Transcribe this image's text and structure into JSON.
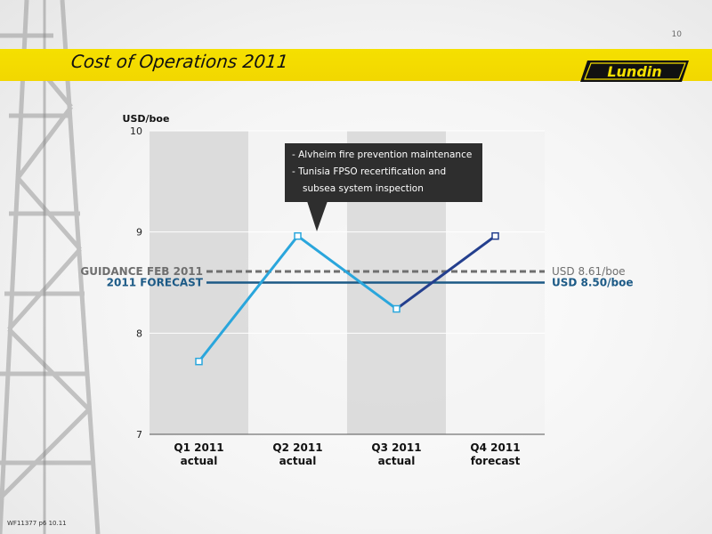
{
  "page_number": "10",
  "title": "Cost of Operations 2011",
  "logo_text": "Lundin",
  "footer_code": "WF11377 p6 10.11",
  "colors": {
    "accent_yellow": "#f5e000",
    "q_line_light": "#2aa6dc",
    "q_line_dark": "#243f8e",
    "guidance_line": "#6f6f6f",
    "forecast_line": "#1c5a86",
    "shaded_band": "#d9d9d9"
  },
  "annotation": {
    "line1": "- Alvheim fire prevention maintenance",
    "line2": "- Tunisia FPSO recertification and",
    "line3": "subsea system inspection"
  },
  "chart_data": {
    "type": "line",
    "ylabel": "USD/boe",
    "ylim": [
      7,
      10
    ],
    "yticks": [
      "7",
      "8",
      "9",
      "10"
    ],
    "grid": true,
    "categories": [
      {
        "line1": "Q1 2011",
        "line2": "actual"
      },
      {
        "line1": "Q2 2011",
        "line2": "actual"
      },
      {
        "line1": "Q3 2011",
        "line2": "actual"
      },
      {
        "line1": "Q4 2011",
        "line2": "forecast"
      }
    ],
    "series": [
      {
        "values": [
          7.72,
          8.96,
          8.24,
          8.96
        ]
      }
    ],
    "reference_lines": [
      {
        "name": "GUIDANCE  FEB 2011",
        "value": 8.61,
        "label": "USD 8.61/boe",
        "style": "dashed"
      },
      {
        "name": "2011 FORECAST",
        "value": 8.5,
        "label": "USD 8.50/boe",
        "style": "solid"
      }
    ]
  }
}
